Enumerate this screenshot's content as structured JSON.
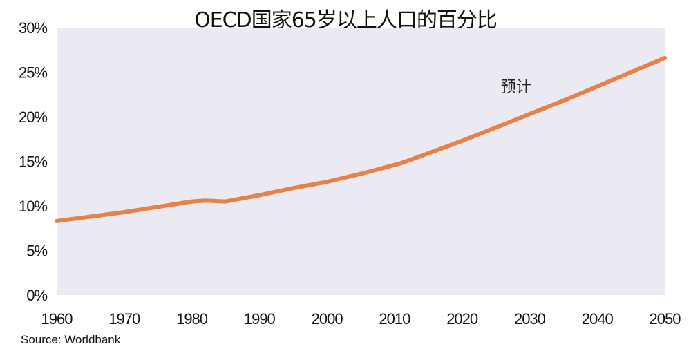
{
  "chart_data": {
    "type": "line",
    "title": "OECD国家65岁以上人口的百分比",
    "xlabel": "",
    "ylabel": "",
    "xlim": [
      1960,
      2050
    ],
    "ylim": [
      0,
      30
    ],
    "x_ticks": [
      1960,
      1970,
      1980,
      1990,
      2000,
      2010,
      2020,
      2030,
      2040,
      2050
    ],
    "y_ticks": [
      "0%",
      "5%",
      "10%",
      "15%",
      "20%",
      "25%",
      "30%"
    ],
    "y_tick_values": [
      0,
      5,
      10,
      15,
      20,
      25,
      30
    ],
    "grid": false,
    "legend": "none",
    "series": [
      {
        "color": "#E8804A",
        "x": [
          1960,
          1965,
          1970,
          1975,
          1980,
          1982,
          1985,
          1990,
          1995,
          2000,
          2005,
          2010,
          2011,
          2015,
          2020,
          2025,
          2030,
          2035,
          2040,
          2045,
          2050
        ],
        "y": [
          8.3,
          8.8,
          9.3,
          9.9,
          10.5,
          10.6,
          10.5,
          11.2,
          12.0,
          12.7,
          13.6,
          14.6,
          14.8,
          15.9,
          17.3,
          18.8,
          20.3,
          21.8,
          23.4,
          25.0,
          26.6
        ]
      }
    ],
    "annotations": [
      {
        "text": "预计",
        "x": 2028,
        "y": 23.4
      }
    ],
    "source": "Source: Worldbank",
    "plot_background": "#EBEAF3",
    "line_color": "#E8804A"
  }
}
